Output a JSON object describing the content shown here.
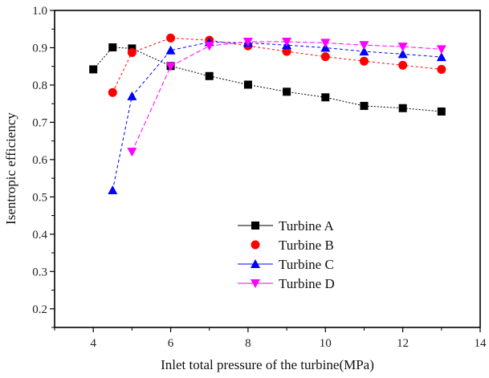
{
  "chart_data": {
    "type": "line",
    "title": "",
    "xlabel": "Inlet total pressure of the turbine(MPa)",
    "ylabel": "Isentropic efficiency",
    "xlim": [
      3,
      14
    ],
    "ylim": [
      0.15,
      1.0
    ],
    "xticks": [
      4,
      6,
      8,
      10,
      12,
      14
    ],
    "xtick_labels": [
      "4",
      "6",
      "8",
      "10",
      "12",
      "14"
    ],
    "yticks": [
      0.2,
      0.3,
      0.4,
      0.5,
      0.6,
      0.7,
      0.8,
      0.9,
      1.0
    ],
    "ytick_labels": [
      "0.2",
      "0.3",
      "0.4",
      "0.5",
      "0.6",
      "0.7",
      "0.8",
      "0.9",
      "1.0"
    ],
    "grid": false,
    "legend_position": "center",
    "series": [
      {
        "name": "Turbine A",
        "color": "#000000",
        "marker": "square",
        "x": [
          4,
          4.5,
          5,
          6,
          7,
          8,
          9,
          10,
          11,
          12,
          13
        ],
        "y": [
          0.842,
          0.901,
          0.898,
          0.851,
          0.824,
          0.801,
          0.782,
          0.767,
          0.744,
          0.738,
          0.729
        ]
      },
      {
        "name": "Turbine B",
        "color": "#ff0000",
        "marker": "circle",
        "x": [
          4.5,
          5,
          6,
          7,
          8,
          9,
          10,
          11,
          12,
          13
        ],
        "y": [
          0.78,
          0.887,
          0.926,
          0.92,
          0.905,
          0.89,
          0.876,
          0.864,
          0.853,
          0.842
        ]
      },
      {
        "name": "Turbine C",
        "color": "#0000ff",
        "marker": "triangle-up",
        "x": [
          4.5,
          5,
          6,
          7,
          8,
          9,
          10,
          11,
          12,
          13
        ],
        "y": [
          0.518,
          0.77,
          0.893,
          0.915,
          0.913,
          0.907,
          0.9,
          0.89,
          0.883,
          0.875
        ]
      },
      {
        "name": "Turbine D",
        "color": "#ff00ff",
        "marker": "triangle-down",
        "x": [
          5,
          6,
          7,
          8,
          9,
          10,
          11,
          12,
          13
        ],
        "y": [
          0.621,
          0.85,
          0.905,
          0.916,
          0.916,
          0.913,
          0.907,
          0.903,
          0.896
        ]
      }
    ]
  }
}
